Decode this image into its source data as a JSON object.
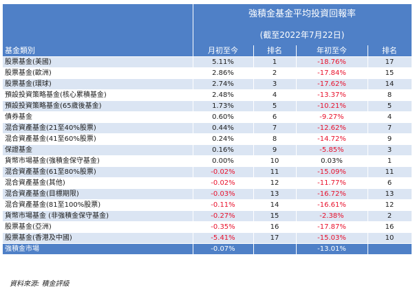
{
  "header": {
    "title": "強積金基金平均投資回報率",
    "subtitle": "(截至2022年7月22日)",
    "col_category": "基金類別",
    "col_mtd": "月初至今",
    "col_rank1": "排名",
    "col_ytd": "年初至今",
    "col_rank2": "排名"
  },
  "rows": [
    {
      "name": "股票基金(美國)",
      "mtd": "5.11%",
      "r1": "1",
      "ytd": "-18.76%",
      "r2": "17"
    },
    {
      "name": "股票基金(歐洲)",
      "mtd": "2.86%",
      "r1": "2",
      "ytd": "-17.84%",
      "r2": "15"
    },
    {
      "name": "股票基金(環球)",
      "mtd": "2.74%",
      "r1": "3",
      "ytd": "-17.62%",
      "r2": "14"
    },
    {
      "name": "預設投資策略基金(核心累積基金)",
      "mtd": "2.48%",
      "r1": "4",
      "ytd": "-13.37%",
      "r2": "8"
    },
    {
      "name": "預設投資策略基金(65歲後基金)",
      "mtd": "1.73%",
      "r1": "5",
      "ytd": "-10.21%",
      "r2": "5"
    },
    {
      "name": "債券基金",
      "mtd": "0.60%",
      "r1": "6",
      "ytd": "-9.27%",
      "r2": "4"
    },
    {
      "name": "混合資產基金(21至40%股票)",
      "mtd": "0.44%",
      "r1": "7",
      "ytd": "-12.62%",
      "r2": "7"
    },
    {
      "name": "混合資產基金(41至60%股票)",
      "mtd": "0.24%",
      "r1": "8",
      "ytd": "-14.72%",
      "r2": "9"
    },
    {
      "name": "保證基金",
      "mtd": "0.16%",
      "r1": "9",
      "ytd": "-5.85%",
      "r2": "3"
    },
    {
      "name": "貨幣市場基金(強積金保守基金)",
      "mtd": "0.00%",
      "r1": "10",
      "ytd": "0.03%",
      "r2": "1"
    },
    {
      "name": "混合資產基金(61至80%股票)",
      "mtd": "-0.02%",
      "r1": "11",
      "ytd": "-15.09%",
      "r2": "11"
    },
    {
      "name": "混合資產基金(其他)",
      "mtd": "-0.02%",
      "r1": "12",
      "ytd": "-11.77%",
      "r2": "6"
    },
    {
      "name": "混合資產基金(目標期限)",
      "mtd": "-0.03%",
      "r1": "13",
      "ytd": "-16.72%",
      "r2": "13"
    },
    {
      "name": "混合資產基金(81至100%股票)",
      "mtd": "-0.11%",
      "r1": "14",
      "ytd": "-16.61%",
      "r2": "12"
    },
    {
      "name": "貨幣市場基金 (非強積金保守基金)",
      "mtd": "-0.27%",
      "r1": "15",
      "ytd": "-2.38%",
      "r2": "2"
    },
    {
      "name": "股票基金(亞洲)",
      "mtd": "-0.35%",
      "r1": "16",
      "ytd": "-17.87%",
      "r2": "16"
    },
    {
      "name": "股票基金(香港及中國)",
      "mtd": "-5.41%",
      "r1": "17",
      "ytd": "-15.03%",
      "r2": "10"
    }
  ],
  "total": {
    "name": "強積金市場",
    "mtd": "-0.07%",
    "ytd": "-13.01%"
  },
  "source": "資料來源: 積金評級",
  "colors": {
    "header_bg": "#4f80c7",
    "band_bg": "#dbe5f3",
    "negative": "#e8102b"
  }
}
